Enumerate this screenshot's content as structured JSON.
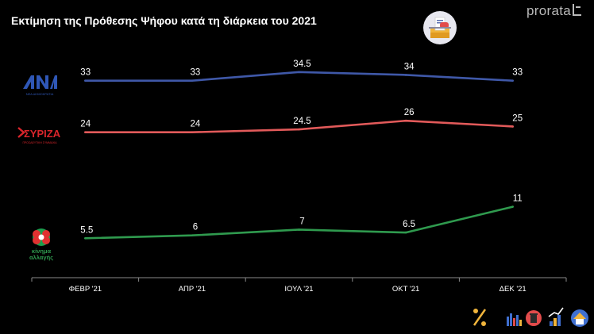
{
  "header": {
    "title": "Εκτίμηση της Πρόθεσης Ψήφου κατά τη διάρκεια του 2021",
    "brand": "prorata"
  },
  "icons": {
    "ballot": "ballot-box-icon",
    "percent": "percent-icon",
    "bottom_row": [
      "bar-chart-icon",
      "trash-can-icon",
      "growth-chart-icon",
      "house-icon"
    ]
  },
  "parties": {
    "nd": {
      "logo_text": "ΝΕΑ ΔΗΜΟΚΡΑΤΙΑ",
      "color": "#3f58a8"
    },
    "syriza": {
      "logo_text": "ΣΥΡΙΖΑ",
      "logo_subtext": "ΠΡΟΟΔΕΥΤΙΚΗ ΣΥΜΜΑΧΙΑ",
      "color": "#e25a5a"
    },
    "kinal": {
      "logo_text_line1": "κίνημα",
      "logo_text_line2": "αλλαγής",
      "color": "#2f9a4e"
    }
  },
  "chart_data": {
    "type": "line",
    "title": "Εκτίμηση της Πρόθεσης Ψήφου κατά τη διάρκεια του 2021",
    "categories": [
      "ΦΕΒΡ '21",
      "ΑΠΡ '21",
      "ΙΟΥΛ '21",
      "ΟΚΤ '21",
      "ΔΕΚ '21"
    ],
    "series": [
      {
        "key": "nd",
        "values": [
          33,
          33,
          34.5,
          34,
          33
        ],
        "labels": [
          "33",
          "33",
          "34.5",
          "34",
          "33"
        ],
        "color": "#3f58a8"
      },
      {
        "key": "syriza",
        "values": [
          24,
          24,
          24.5,
          26,
          25
        ],
        "labels": [
          "24",
          "24",
          "24.5",
          "26",
          "25"
        ],
        "color": "#e25a5a"
      },
      {
        "key": "kinal",
        "values": [
          5.5,
          6,
          7,
          6.5,
          11
        ],
        "labels": [
          "5.5",
          "6",
          "7",
          "6.5",
          "11"
        ],
        "color": "#2f9a4e"
      }
    ],
    "ylim": [
      0,
      36
    ],
    "grid": false,
    "legend": "left"
  }
}
